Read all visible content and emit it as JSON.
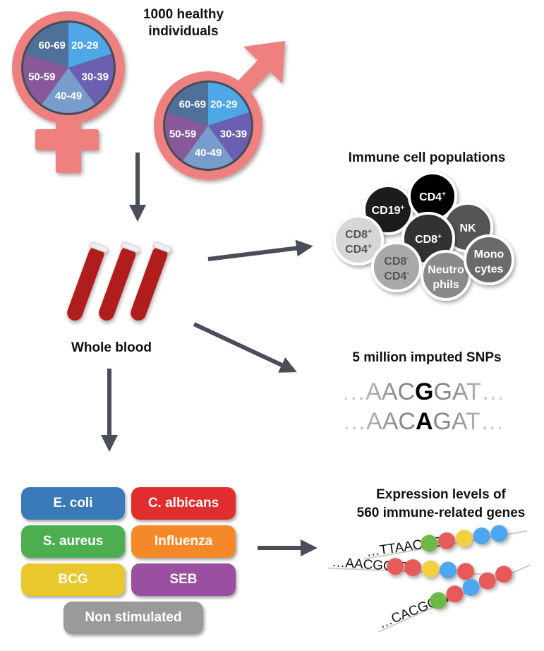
{
  "header": {
    "title_line1": "1000 healthy",
    "title_line2": "individuals"
  },
  "age_groups": [
    "20-29",
    "30-39",
    "40-49",
    "50-59",
    "60-69"
  ],
  "age_colors": [
    "#4ea7e6",
    "#6a5fb0",
    "#789ccc",
    "#88589a",
    "#4f7099"
  ],
  "symbol_color": "#ee8080",
  "arrow_color": "#4a4e58",
  "blood": {
    "label": "Whole blood"
  },
  "immune": {
    "title": "Immune cell populations",
    "cells": [
      {
        "label": "CD19",
        "sup": "+",
        "color": "#1f1f1f"
      },
      {
        "label": "CD4",
        "sup": "+",
        "color": "#000000"
      },
      {
        "label": "NK",
        "sup": "",
        "color": "#555555"
      },
      {
        "label": "CD8",
        "sup": "+",
        "color": "#333333"
      },
      {
        "label": "CD8",
        "sup": "+",
        "label2": "CD4",
        "sup2": "+",
        "color": "#d6d6d6"
      },
      {
        "label": "CD8",
        "sup": "-",
        "label2": "CD4",
        "sup2": "-",
        "color": "#a9a9a9"
      },
      {
        "label": "Neutro",
        "label2": "phils",
        "color": "#8a8a8a"
      },
      {
        "label": "Mono",
        "label2": "cytes",
        "color": "#6b6b6b"
      }
    ]
  },
  "snps": {
    "title": "5 million imputed SNPs",
    "seq1": {
      "pre": "…AAC",
      "var": "G",
      "post": "GAT…"
    },
    "seq2": {
      "pre": "…AAC",
      "var": "A",
      "post": "GAT…"
    }
  },
  "stimuli": [
    {
      "label": "E. coli",
      "color": "#3a7ab8"
    },
    {
      "label": "C. albicans",
      "color": "#e02e2e"
    },
    {
      "label": "S. aureus",
      "color": "#4cae4f"
    },
    {
      "label": "Influenza",
      "color": "#f5892a"
    },
    {
      "label": "BCG",
      "color": "#e8c82a"
    },
    {
      "label": "SEB",
      "color": "#9a4fa0"
    },
    {
      "label": "Non stimulated",
      "color": "#9a9a9a"
    }
  ],
  "expression": {
    "title_line1": "Expression levels of",
    "title_line2": "560 immune-related genes",
    "strands": [
      {
        "seq": "…TTAACGG",
        "beads": [
          "#6cba45",
          "#e85a5a",
          "#f2cf3c",
          "#4ea7f0",
          "#4ea7f0"
        ]
      },
      {
        "seq": "…AACGGAT",
        "beads": [
          "#e85a5a",
          "#e85a5a",
          "#f2cf3c",
          "#4ea7f0",
          "#e85a5a"
        ]
      },
      {
        "seq": "…CACGCAA",
        "beads": [
          "#6cba45",
          "#e85a5a",
          "#4ea7f0",
          "#e85a5a",
          "#e85a5a"
        ]
      }
    ]
  }
}
